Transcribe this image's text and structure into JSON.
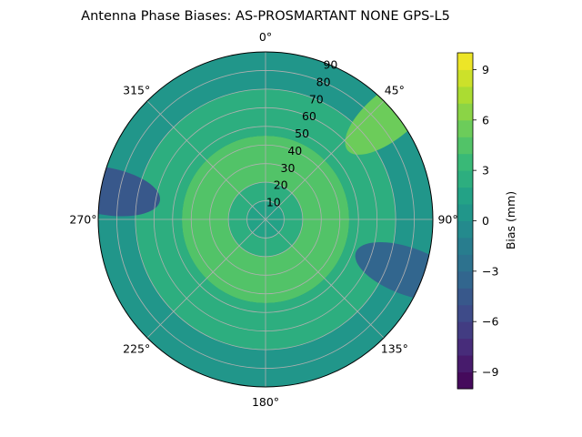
{
  "chart_data": {
    "type": "polar_contour",
    "title": "Antenna Phase Biases: AS-PROSMARTANT  NONE GPS-L5",
    "angular_axis": {
      "zero_location": "N",
      "direction": "clockwise",
      "tick_labels": [
        "0°",
        "45°",
        "90°",
        "135°",
        "180°",
        "225°",
        "270°",
        "315°"
      ],
      "tick_values": [
        0,
        45,
        90,
        135,
        180,
        225,
        270,
        315
      ]
    },
    "radial_axis": {
      "range": [
        0,
        90
      ],
      "tick_values": [
        10,
        20,
        30,
        40,
        50,
        60,
        70,
        80,
        90
      ],
      "tick_labels": [
        "10",
        "20",
        "30",
        "40",
        "50",
        "60",
        "70",
        "80",
        "90"
      ]
    },
    "grid": true,
    "colorbar": {
      "label": "Bias (mm)",
      "colormap": "viridis",
      "range": [
        -10,
        10
      ],
      "tick_values": [
        -9,
        -6,
        -3,
        0,
        3,
        6,
        9
      ],
      "tick_labels": [
        "−9",
        "−6",
        "−3",
        "0",
        "3",
        "6",
        "9"
      ],
      "levels": 20
    },
    "zones": [
      {
        "description": "center",
        "r_range": [
          0,
          10
        ],
        "bias_mm": 1.0
      },
      {
        "description": "inner ring",
        "r_range": [
          10,
          20
        ],
        "bias_mm": 2.5
      },
      {
        "description": "mid ring",
        "r_range": [
          20,
          45
        ],
        "bias_mm": 4.5
      },
      {
        "description": "outer-mid",
        "r_range": [
          45,
          70
        ],
        "bias_mm": 2.0
      },
      {
        "description": "outer",
        "r_range": [
          70,
          90
        ],
        "bias_mm": 0.5
      },
      {
        "description": "west rim low",
        "az_deg": 280,
        "r": 88,
        "bias_mm": -4.5
      },
      {
        "description": "east rim low",
        "az_deg": 110,
        "r": 82,
        "bias_mm": -3.5
      },
      {
        "description": "northeast rim high",
        "az_deg": 50,
        "r": 88,
        "bias_mm": 5.0
      }
    ]
  }
}
